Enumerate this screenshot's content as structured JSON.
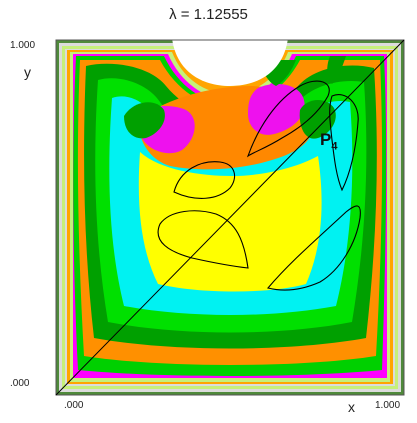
{
  "chart_data": {
    "type": "heatmap",
    "title": "λ = 1.12555",
    "xlabel": "x",
    "ylabel": "y",
    "xlim": [
      0,
      1
    ],
    "ylim": [
      0,
      1
    ],
    "x_ticks": [
      ".000",
      "1.000"
    ],
    "y_ticks": [
      ".000",
      "1.000"
    ],
    "annotation": {
      "label": "P",
      "subscript": "4",
      "x": 0.8,
      "y": 0.69
    },
    "diagonal_line": {
      "from": [
        0,
        0
      ],
      "to": [
        1,
        1
      ]
    },
    "band_colors": [
      "#4f8a3b",
      "#dcdcdc",
      "#c6f07a",
      "#ffa500",
      "#ff00ff",
      "#00d000",
      "#ff9000",
      "#00a000",
      "#00e000",
      "#00f2f2",
      "#ffff00",
      "#ff8800",
      "#ee11ee"
    ],
    "contour_color": "#000000"
  }
}
